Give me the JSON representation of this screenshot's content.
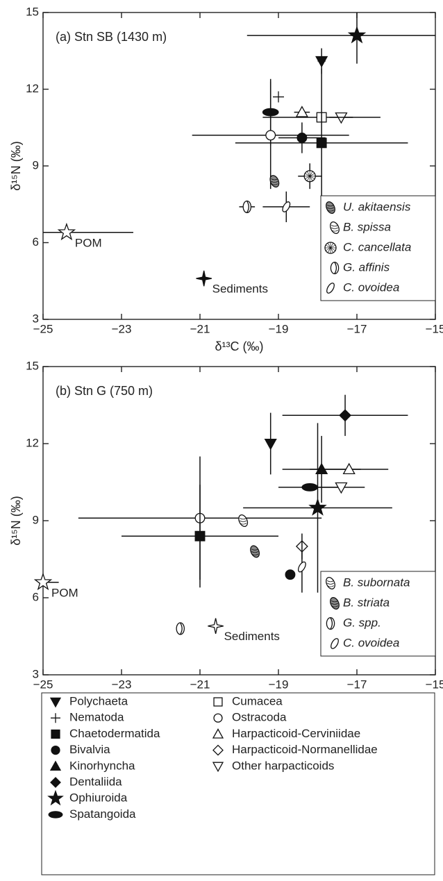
{
  "chart_data": [
    {
      "type": "scatter",
      "title": "(a) Stn SB (1430 m)",
      "xlabel": "δ¹³C (‰)",
      "ylabel": "δ¹⁵N (‰)",
      "xlim": [
        -25,
        -15
      ],
      "ylim": [
        3,
        15
      ],
      "xticks": [
        {
          "value": -25,
          "label": "−25"
        },
        {
          "value": -23,
          "label": "−23"
        },
        {
          "value": -21,
          "label": "−21"
        },
        {
          "value": -19,
          "label": "−19"
        },
        {
          "value": -17,
          "label": "−17"
        },
        {
          "value": -15,
          "label": "−15"
        }
      ],
      "yticks": [
        3,
        6,
        9,
        12,
        15
      ],
      "series": [
        {
          "name": "Ophiuroida",
          "marker": "star5",
          "filled": true,
          "x": -17,
          "y": 14.1,
          "xerr": 2.8,
          "yerr": 1.1
        },
        {
          "name": "Polychaeta",
          "marker": "tri-down",
          "filled": true,
          "x": -17.9,
          "y": 13.1,
          "xerr": 0.1,
          "yerr": 0.5
        },
        {
          "name": "Nematoda",
          "marker": "plus",
          "filled": true,
          "x": -19,
          "y": 11.7
        },
        {
          "name": "Spatangoida",
          "marker": "ellipse",
          "filled": true,
          "x": -19.2,
          "y": 11.1,
          "yerr": 1.3
        },
        {
          "name": "Harpacticoid-Cerviniidae",
          "marker": "tri-up",
          "filled": false,
          "x": -18.4,
          "y": 11.1,
          "xerr": 0.2
        },
        {
          "name": "Other harpacticoids",
          "marker": "tri-down",
          "filled": false,
          "x": -17.4,
          "y": 10.9,
          "xerr": 0.3
        },
        {
          "name": "Cumacea",
          "marker": "square",
          "filled": false,
          "x": -17.9,
          "y": 10.9,
          "xerr": 1.5
        },
        {
          "name": "Ostracoda",
          "marker": "circle",
          "filled": false,
          "x": -19.2,
          "y": 10.2,
          "xerr": 2.0,
          "yerr": 2.1
        },
        {
          "name": "Bivalvia",
          "marker": "circle",
          "filled": true,
          "x": -18.4,
          "y": 10.1,
          "xerr": 0.6,
          "yerr": 0.6
        },
        {
          "name": "Chaetodermatida",
          "marker": "square",
          "filled": true,
          "x": -17.9,
          "y": 9.9,
          "xerr": 2.2,
          "yerr": 2.9
        },
        {
          "name": "C. cancellata",
          "marker": "shell-c",
          "filled": false,
          "x": -18.2,
          "y": 8.6,
          "xerr": 0.3,
          "yerr": 0.5
        },
        {
          "name": "U. akitaensis",
          "marker": "shell-a",
          "filled": false,
          "x": -19.1,
          "y": 8.4
        },
        {
          "name": "G. affinis",
          "marker": "shell-g",
          "filled": false,
          "x": -19.8,
          "y": 7.4,
          "xerr": 0.2
        },
        {
          "name": "C. ovoidea",
          "marker": "egg",
          "filled": false,
          "x": -18.8,
          "y": 7.4,
          "xerr": 0.6,
          "yerr": 0.6
        },
        {
          "name": "POM",
          "marker": "star5",
          "filled": false,
          "x": -24.4,
          "y": 6.4,
          "xerr": 1.7,
          "show_label": true
        },
        {
          "name": "Sediments",
          "marker": "star4",
          "filled": true,
          "x": -20.9,
          "y": 4.6,
          "show_label": true
        }
      ],
      "inset_legend": [
        "U. akitaensis",
        "B. spissa",
        "C. cancellata",
        "G. affinis",
        "C. ovoidea"
      ],
      "inset_markers": [
        "shell-a",
        "shell-b",
        "shell-c",
        "shell-g",
        "egg"
      ]
    },
    {
      "type": "scatter",
      "title": "(b) Stn G (750 m)",
      "xlabel": "δ¹³C (‰)",
      "ylabel": "δ¹⁵N (‰)",
      "xlim": [
        -25,
        -15
      ],
      "ylim": [
        3,
        15
      ],
      "xticks": [
        {
          "value": -25,
          "label": "−25"
        },
        {
          "value": -23,
          "label": "−23"
        },
        {
          "value": -21,
          "label": "−21"
        },
        {
          "value": -19,
          "label": "−19"
        },
        {
          "value": -17,
          "label": "−17"
        },
        {
          "value": -15,
          "label": "−15"
        }
      ],
      "yticks": [
        3,
        6,
        9,
        12,
        15
      ],
      "series": [
        {
          "name": "Dentaliida",
          "marker": "diamond",
          "filled": true,
          "x": -17.3,
          "y": 13.1,
          "xerr": 1.6,
          "yerr": 0.8
        },
        {
          "name": "Polychaeta",
          "marker": "tri-down",
          "filled": true,
          "x": -19.2,
          "y": 12.0,
          "yerr": 1.2
        },
        {
          "name": "Kinorhyncha",
          "marker": "tri-up",
          "filled": true,
          "x": -17.9,
          "y": 11.0,
          "xerr": 1.0,
          "yerr": 1.3
        },
        {
          "name": "Harpacticoid-Cerviniidae",
          "marker": "tri-up",
          "filled": false,
          "x": -17.2,
          "y": 11.0,
          "xerr": 1.0
        },
        {
          "name": "Spatangoida",
          "marker": "ellipse",
          "filled": true,
          "x": -18.2,
          "y": 10.3,
          "xerr": 0.8
        },
        {
          "name": "Other harpacticoids",
          "marker": "tri-down",
          "filled": false,
          "x": -17.4,
          "y": 10.3,
          "xerr": 0.6
        },
        {
          "name": "Ophiuroida",
          "marker": "star5",
          "filled": true,
          "x": -18.0,
          "y": 9.5,
          "xerr": 1.9,
          "yerr": 3.3
        },
        {
          "name": "Ostracoda",
          "marker": "circle",
          "filled": false,
          "x": -21.0,
          "y": 9.1,
          "xerr": 3.1,
          "yerr": 2.4
        },
        {
          "name": "B. subornata",
          "marker": "shell-b",
          "filled": false,
          "x": -19.9,
          "y": 9.0
        },
        {
          "name": "Chaetodermatida",
          "marker": "square",
          "filled": true,
          "x": -21.0,
          "y": 8.4,
          "xerr": 2.0,
          "yerr": 2.0
        },
        {
          "name": "Harpacticoid-Normanellidae",
          "marker": "diamond",
          "filled": false,
          "x": -18.4,
          "y": 8.0,
          "yerr": 0.5
        },
        {
          "name": "B. striata",
          "marker": "shell-a",
          "filled": false,
          "x": -19.6,
          "y": 7.8
        },
        {
          "name": "C. ovoidea",
          "marker": "egg",
          "filled": false,
          "x": -18.4,
          "y": 7.2,
          "yerr": 1.0
        },
        {
          "name": "Bivalvia",
          "marker": "circle",
          "filled": true,
          "x": -18.7,
          "y": 6.9
        },
        {
          "name": "POM",
          "marker": "star5",
          "filled": false,
          "x": -25.0,
          "y": 6.6,
          "xerr": 0.4,
          "show_label": true
        },
        {
          "name": "G. spp.",
          "marker": "shell-g",
          "filled": false,
          "x": -21.5,
          "y": 4.8
        },
        {
          "name": "Sediments",
          "marker": "star4",
          "filled": false,
          "x": -20.6,
          "y": 4.9,
          "show_label": true
        }
      ],
      "inset_legend": [
        "B. subornata",
        "B. striata",
        "G. spp.",
        "C. ovoidea"
      ],
      "inset_markers": [
        "shell-b",
        "shell-a",
        "shell-g",
        "egg"
      ]
    }
  ],
  "legend": {
    "columns": [
      [
        {
          "name": "Polychaeta",
          "marker": "tri-down",
          "filled": true
        },
        {
          "name": "Nematoda",
          "marker": "plus",
          "filled": true
        },
        {
          "name": "Chaetodermatida",
          "marker": "square",
          "filled": true
        },
        {
          "name": "Bivalvia",
          "marker": "circle",
          "filled": true
        },
        {
          "name": "Kinorhyncha",
          "marker": "tri-up",
          "filled": true
        },
        {
          "name": "Dentaliida",
          "marker": "diamond",
          "filled": true
        },
        {
          "name": "Ophiuroida",
          "marker": "star5",
          "filled": true
        },
        {
          "name": "Spatangoida",
          "marker": "ellipse",
          "filled": true
        }
      ],
      [
        {
          "name": "Cumacea",
          "marker": "square",
          "filled": false
        },
        {
          "name": "Ostracoda",
          "marker": "circle",
          "filled": false
        },
        {
          "name": "Harpacticoid-Cerviniidae",
          "marker": "tri-up",
          "filled": false
        },
        {
          "name": "Harpacticoid-Normanellidae",
          "marker": "diamond",
          "filled": false
        },
        {
          "name": "Other harpacticoids",
          "marker": "tri-down",
          "filled": false
        }
      ]
    ]
  }
}
